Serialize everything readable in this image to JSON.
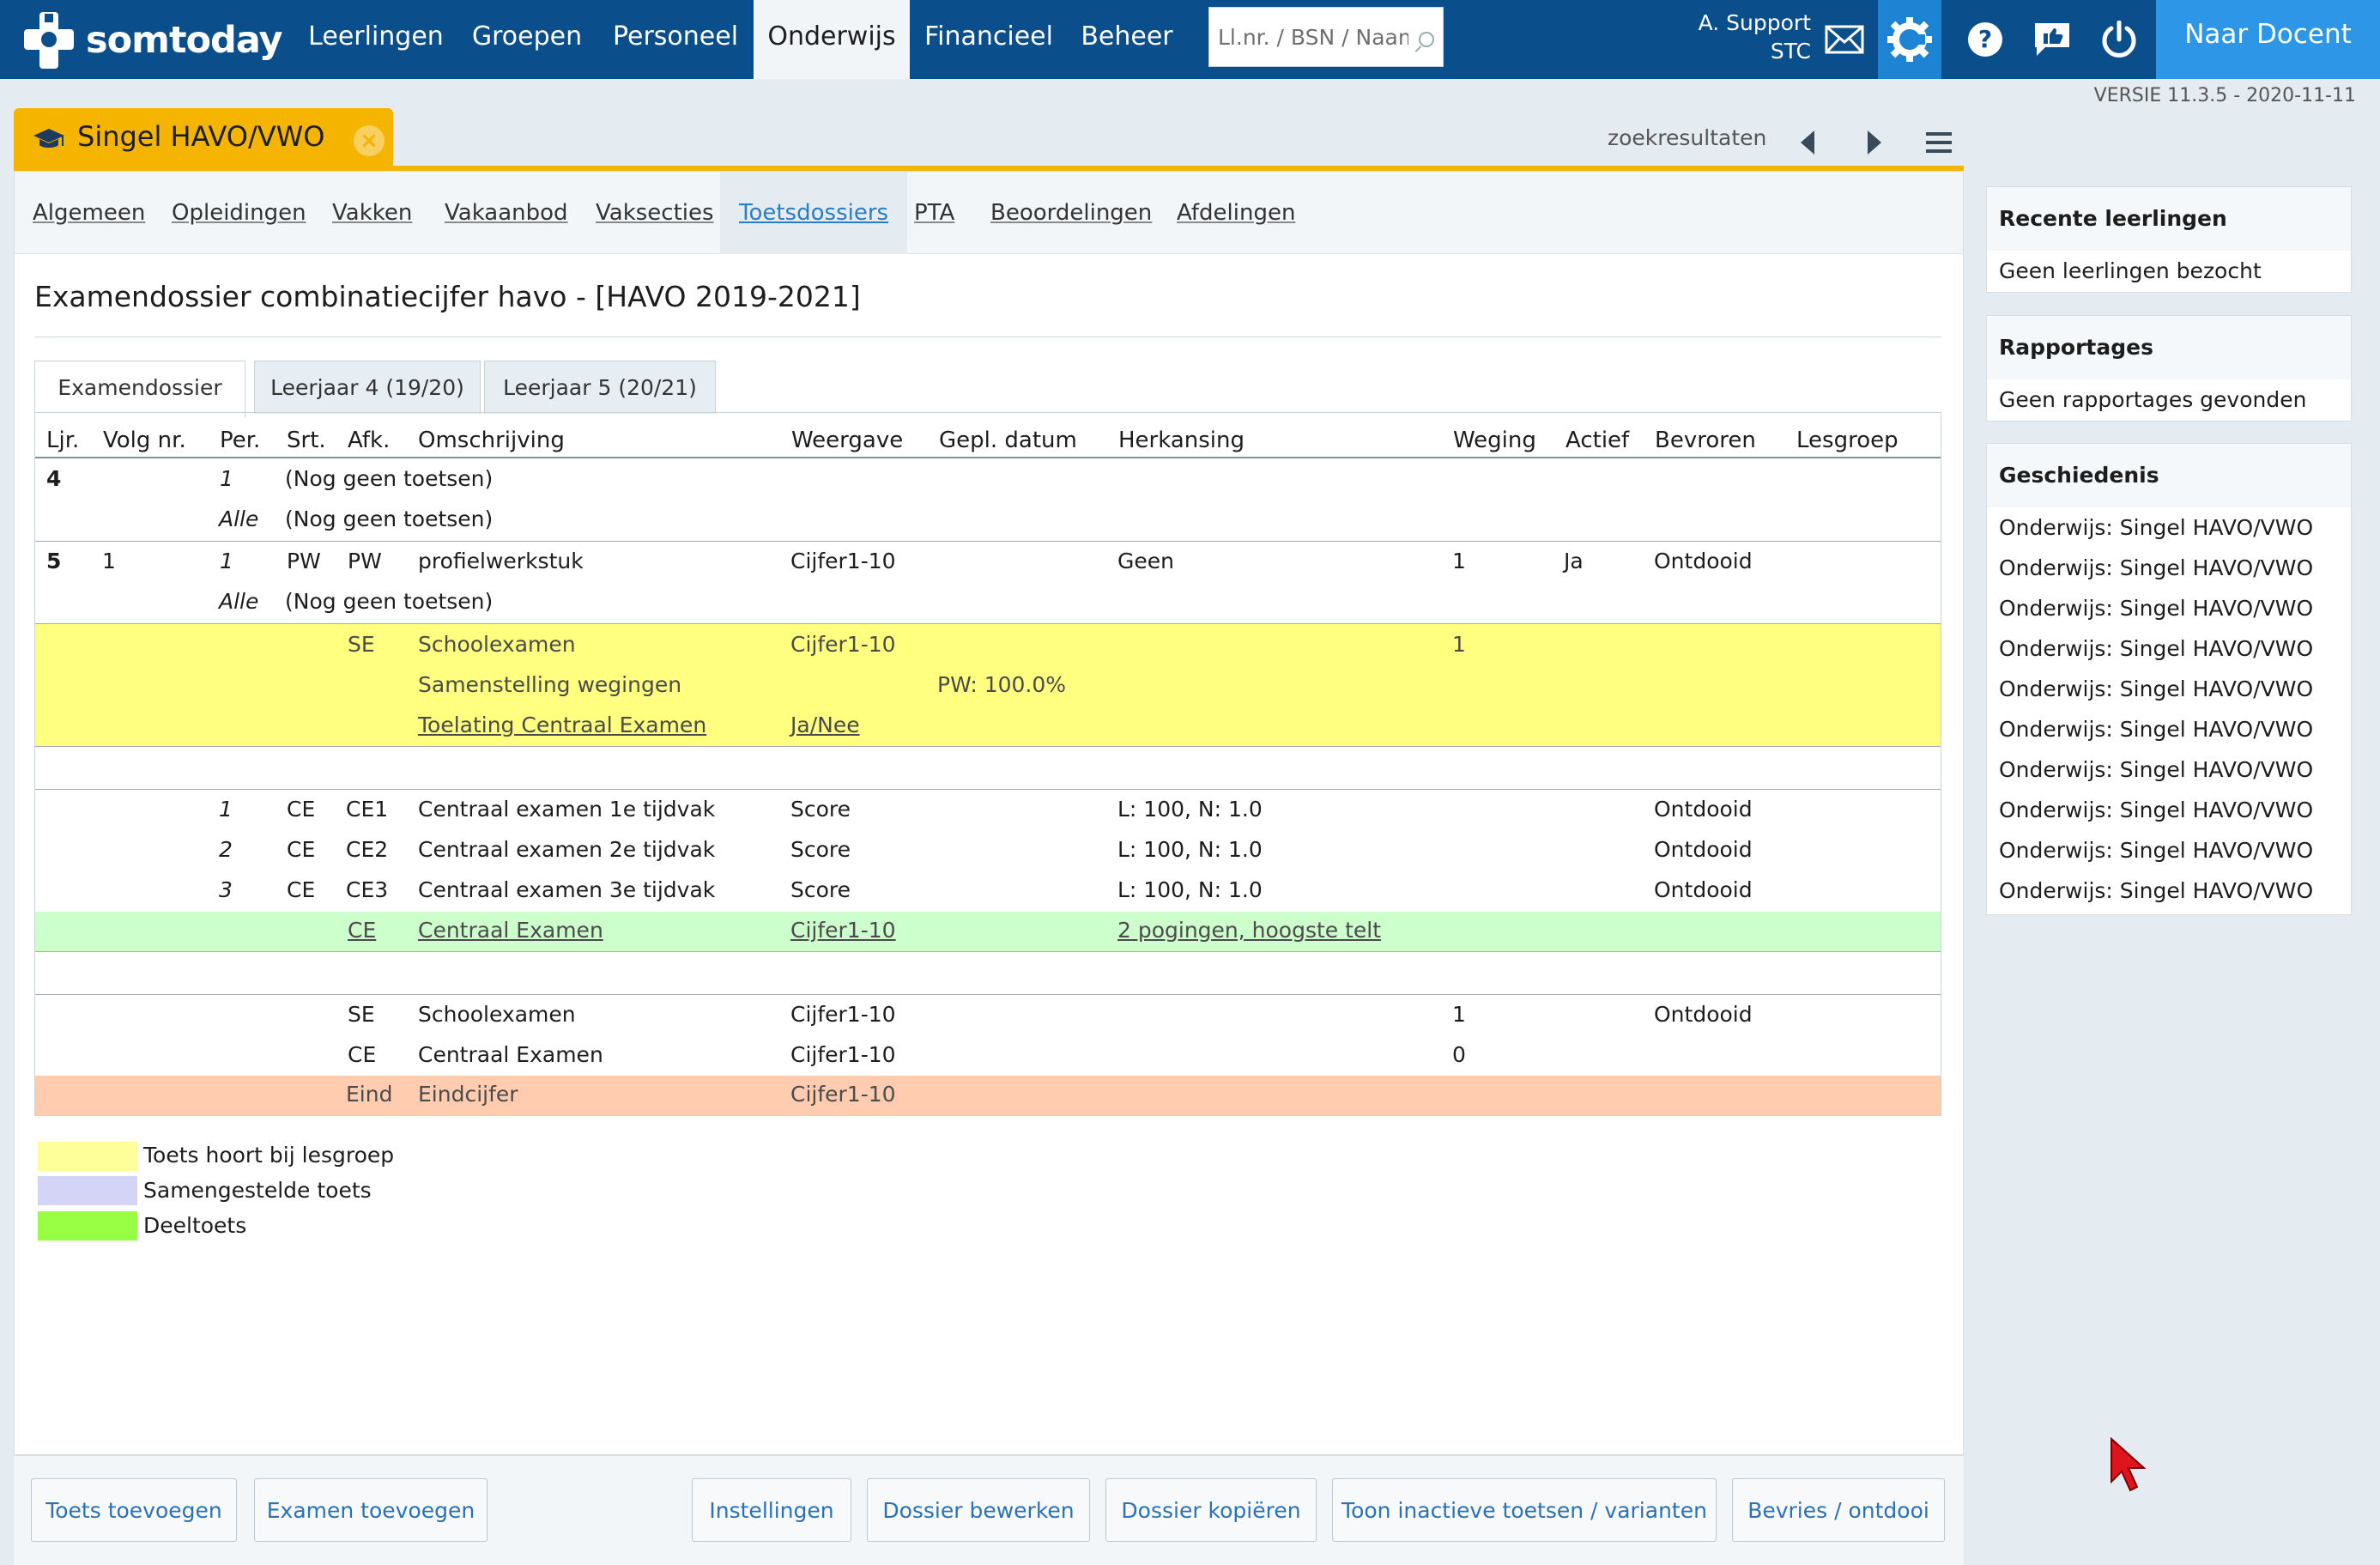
{
  "app": {
    "brand": "somtoday",
    "nav": [
      "Leerlingen",
      "Groepen",
      "Personeel",
      "Onderwijs",
      "Financieel",
      "Beheer"
    ],
    "active_nav": "Onderwijs",
    "search_placeholder": "Ll.nr. / BSN / Naam",
    "user_line1": "A. Support",
    "user_line2": "STC",
    "naar_docent": "Naar Docent",
    "versie": "VERSIE 11.3.5 - 2020-11-11"
  },
  "doc_tab": {
    "title": "Singel HAVO/VWO",
    "zoekresultaten": "zoekresultaten"
  },
  "subnav": [
    "Algemeen",
    "Opleidingen",
    "Vakken",
    "Vakaanbod",
    "Vaksecties",
    "Toetsdossiers",
    "PTA",
    "Beoordelingen",
    "Afdelingen"
  ],
  "active_subnav": "Toetsdossiers",
  "page_title": "Examendossier combinatiecijfer havo - [HAVO 2019-2021]",
  "dossier_tabs": [
    "Examendossier",
    "Leerjaar 4 (19/20)",
    "Leerjaar 5 (20/21)"
  ],
  "table": {
    "headers": [
      "Ljr.",
      "Volg nr.",
      "Per.",
      "Srt.",
      "Afk.",
      "Omschrijving",
      "Weergave",
      "Gepl. datum",
      "Herkansing",
      "Weging",
      "Actief",
      "Bevroren",
      "Lesgroep"
    ],
    "r1": {
      "ljr": "4",
      "per": "1",
      "oms": "(Nog geen toetsen)"
    },
    "r2": {
      "per": "Alle",
      "oms": "(Nog geen toetsen)"
    },
    "r3": {
      "ljr": "5",
      "volg": "1",
      "per": "1",
      "srt": "PW",
      "afk": "PW",
      "oms": "profielwerkstuk",
      "weergave": "Cijfer1-10",
      "herkansing": "Geen",
      "weging": "1",
      "actief": "Ja",
      "bevroren": "Ontdooid"
    },
    "r4": {
      "per": "Alle",
      "oms": "(Nog geen toetsen)"
    },
    "y1": {
      "afk": "SE",
      "oms": "Schoolexamen",
      "weergave": "Cijfer1-10",
      "weging": "1"
    },
    "y2": {
      "oms": "Samenstelling wegingen",
      "gepl": "PW: 100.0%"
    },
    "y3": {
      "oms": "Toelating Centraal Examen",
      "weergave": "Ja/Nee"
    },
    "c1": {
      "per": "1",
      "srt": "CE",
      "afk": "CE1",
      "oms": "Centraal examen 1e tijdvak",
      "weergave": "Score",
      "herkansing": "L: 100, N: 1.0",
      "bevroren": "Ontdooid"
    },
    "c2": {
      "per": "2",
      "srt": "CE",
      "afk": "CE2",
      "oms": "Centraal examen 2e tijdvak",
      "weergave": "Score",
      "herkansing": "L: 100, N: 1.0",
      "bevroren": "Ontdooid"
    },
    "c3": {
      "per": "3",
      "srt": "CE",
      "afk": "CE3",
      "oms": "Centraal examen 3e tijdvak",
      "weergave": "Score",
      "herkansing": "L: 100, N: 1.0",
      "bevroren": "Ontdooid"
    },
    "g1": {
      "afk": "CE",
      "oms": "Centraal Examen",
      "weergave": "Cijfer1-10",
      "herkansing": "2 pogingen, hoogste telt"
    },
    "e1": {
      "afk": "SE",
      "oms": "Schoolexamen",
      "weergave": "Cijfer1-10",
      "weging": "1",
      "bevroren": "Ontdooid"
    },
    "e2": {
      "afk": "CE",
      "oms": "Centraal Examen",
      "weergave": "Cijfer1-10",
      "weging": "0"
    },
    "e3": {
      "afk": "Eind",
      "oms": "Eindcijfer",
      "weergave": "Cijfer1-10"
    }
  },
  "legend": [
    {
      "label": "Toets hoort bij lesgroep",
      "color": "#ffff99"
    },
    {
      "label": "Samengestelde toets",
      "color": "#d4d4f7"
    },
    {
      "label": "Deeltoets",
      "color": "#99ff44"
    }
  ],
  "row_colors": {
    "yellow": "#ffff80",
    "green": "#ccffcc",
    "salmon": "#ffccb0"
  },
  "buttons": {
    "toets_toevoegen": "Toets toevoegen",
    "examen_toevoegen": "Examen toevoegen",
    "instellingen": "Instellingen",
    "dossier_bewerken": "Dossier bewerken",
    "dossier_kopieren": "Dossier kopiëren",
    "toon_inactieve": "Toon inactieve toetsen / varianten",
    "bevries": "Bevries / ontdooi"
  },
  "sidebar": {
    "recente_title": "Recente leerlingen",
    "recente_empty": "Geen leerlingen bezocht",
    "rapportages_title": "Rapportages",
    "rapportages_empty": "Geen rapportages gevonden",
    "geschiedenis_title": "Geschiedenis",
    "geschiedenis": [
      "Onderwijs: Singel HAVO/VWO",
      "Onderwijs: Singel HAVO/VWO",
      "Onderwijs: Singel HAVO/VWO",
      "Onderwijs: Singel HAVO/VWO",
      "Onderwijs: Singel HAVO/VWO",
      "Onderwijs: Singel HAVO/VWO",
      "Onderwijs: Singel HAVO/VWO",
      "Onderwijs: Singel HAVO/VWO",
      "Onderwijs: Singel HAVO/VWO",
      "Onderwijs: Singel HAVO/VWO"
    ]
  }
}
